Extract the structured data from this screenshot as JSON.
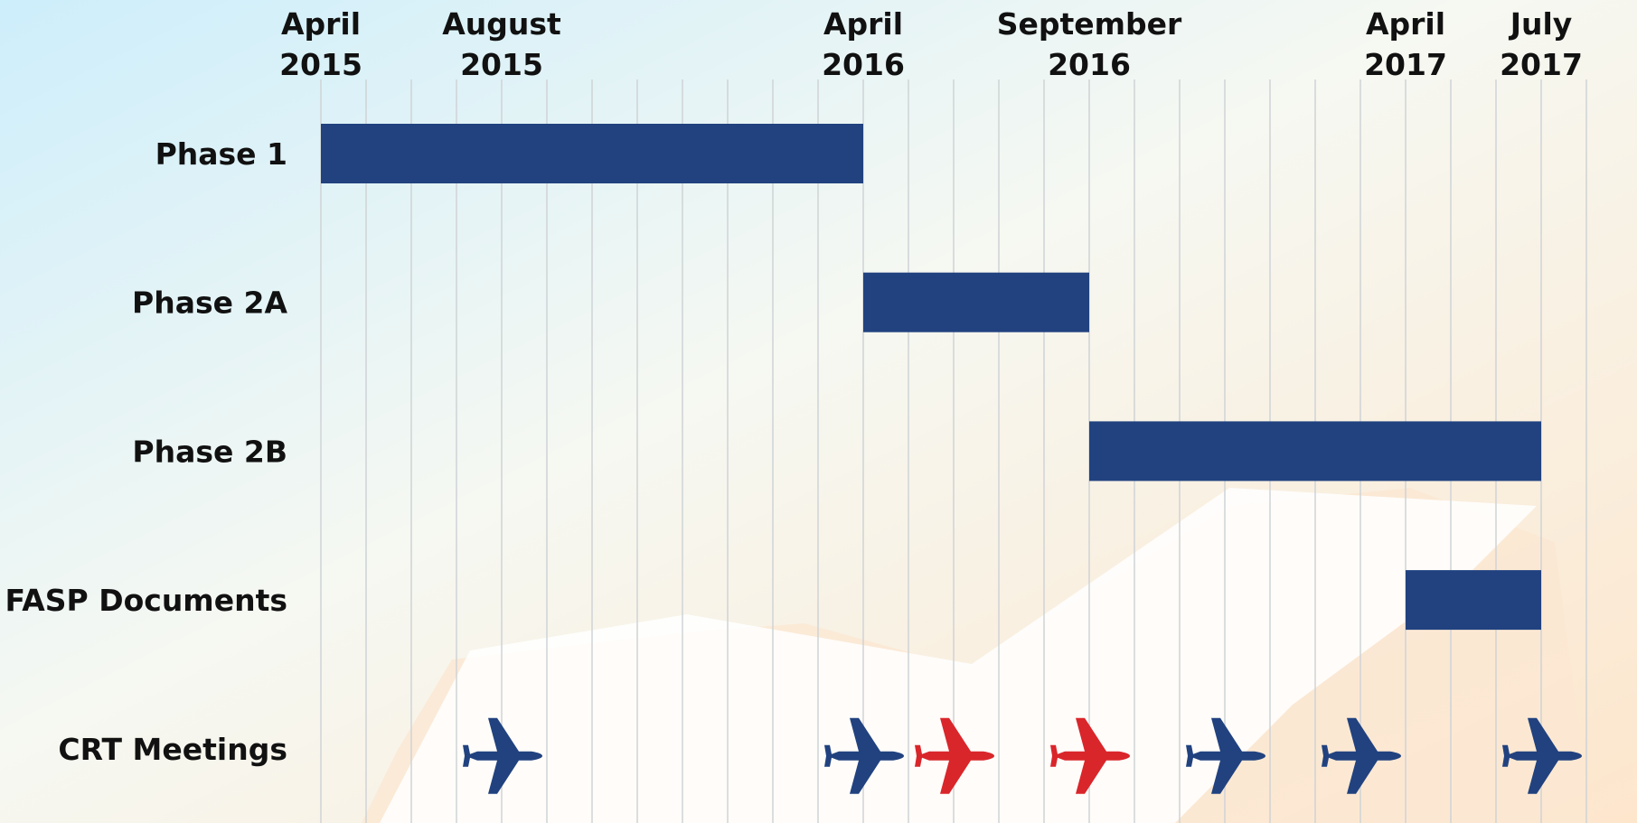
{
  "chart_data": {
    "type": "gantt",
    "xlim": [
      0,
      28
    ],
    "xticks": [
      {
        "value": 0,
        "label": "April 2015"
      },
      {
        "value": 4,
        "label": "August 2015"
      },
      {
        "value": 12,
        "label": "April 2016"
      },
      {
        "value": 17,
        "label": "September 2016"
      },
      {
        "value": 24,
        "label": "April 2017"
      },
      {
        "value": 27,
        "label": "July 2017"
      }
    ],
    "minor_xticks": [
      0,
      1,
      2,
      3,
      4,
      5,
      6,
      7,
      8,
      9,
      10,
      11,
      12,
      13,
      14,
      15,
      16,
      17,
      18,
      19,
      20,
      21,
      22,
      23,
      24,
      25,
      26,
      27,
      28
    ],
    "grid": true,
    "color": "#21427f",
    "tasks": [
      {
        "name": "Phase 1",
        "start": 0,
        "end": 12
      },
      {
        "name": "Phase 2A",
        "start": 12,
        "end": 17
      },
      {
        "name": "Phase 2B",
        "start": 17,
        "end": 27
      },
      {
        "name": "FASP Documents",
        "start": 24,
        "end": 27
      }
    ],
    "milestones": {
      "name": "CRT Meetings",
      "points": [
        {
          "x": 4,
          "color": "#21427f"
        },
        {
          "x": 12,
          "color": "#21427f"
        },
        {
          "x": 14,
          "color": "#d9262b"
        },
        {
          "x": 17,
          "color": "#d9262b"
        },
        {
          "x": 20,
          "color": "#21427f"
        },
        {
          "x": 23,
          "color": "#21427f"
        },
        {
          "x": 27,
          "color": "#21427f"
        }
      ]
    }
  }
}
